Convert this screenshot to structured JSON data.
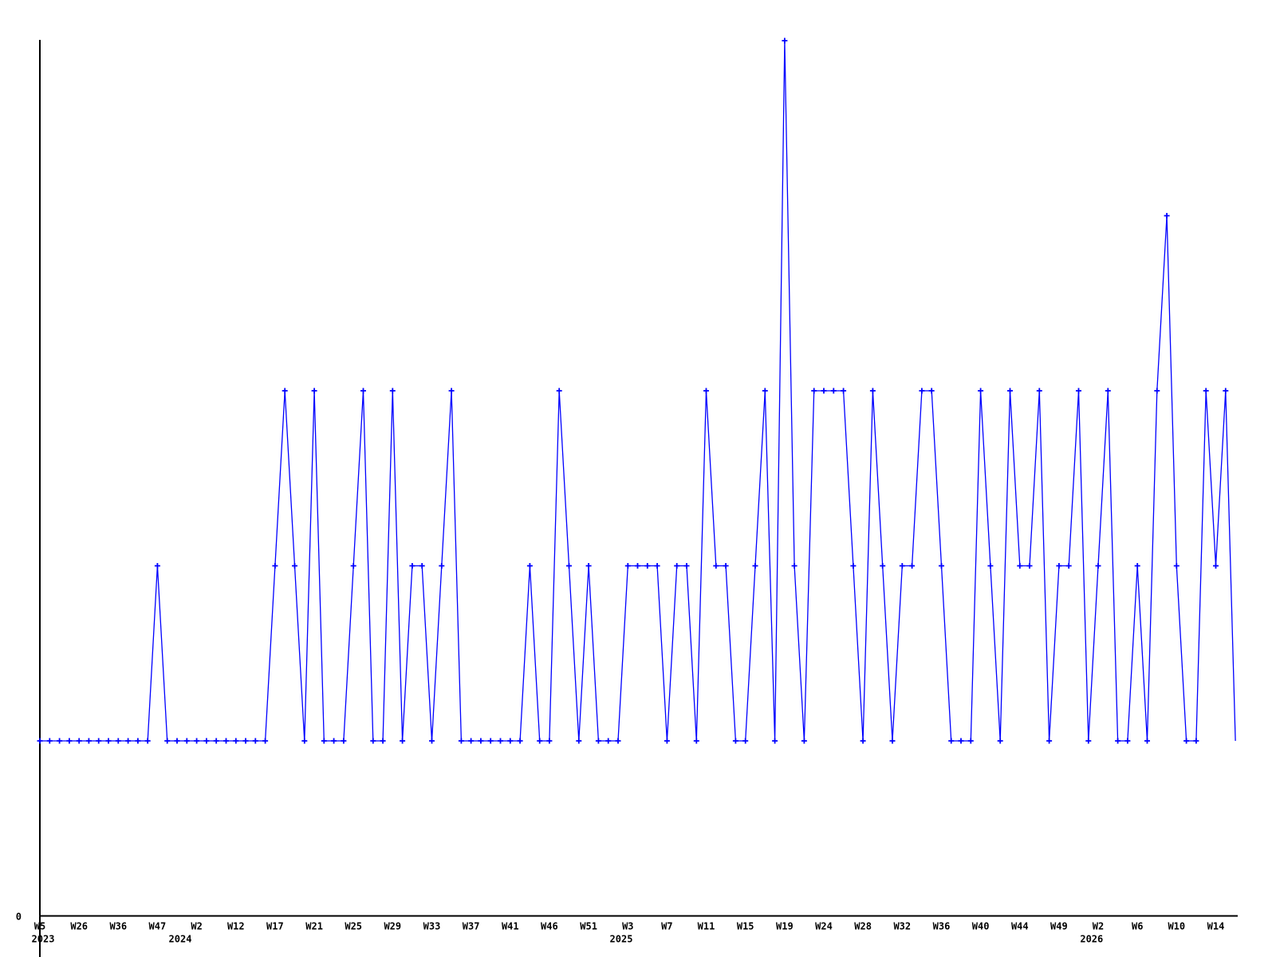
{
  "chart_data": {
    "type": "line",
    "title": "",
    "legend": "none",
    "grid": "off",
    "line_color": "#0000ff",
    "axis_color": "#000000",
    "background_color": "#ffffff",
    "marker": "plus",
    "ylim": [
      0,
      5
    ],
    "y_tick_labels": [
      {
        "value": 0,
        "label": "0"
      }
    ],
    "x_axis_note": "weekly series, one point per week with data; tick every 4th point",
    "x_tick_labels": [
      {
        "index": 0,
        "label": "W5"
      },
      {
        "index": 4,
        "label": "W26"
      },
      {
        "index": 8,
        "label": "W36"
      },
      {
        "index": 12,
        "label": "W47"
      },
      {
        "index": 16,
        "label": "W2"
      },
      {
        "index": 20,
        "label": "W12"
      },
      {
        "index": 24,
        "label": "W17"
      },
      {
        "index": 28,
        "label": "W21"
      },
      {
        "index": 32,
        "label": "W25"
      },
      {
        "index": 36,
        "label": "W29"
      },
      {
        "index": 40,
        "label": "W33"
      },
      {
        "index": 44,
        "label": "W37"
      },
      {
        "index": 48,
        "label": "W41"
      },
      {
        "index": 52,
        "label": "W46"
      },
      {
        "index": 56,
        "label": "W51"
      },
      {
        "index": 60,
        "label": "W3"
      },
      {
        "index": 64,
        "label": "W7"
      },
      {
        "index": 68,
        "label": "W11"
      },
      {
        "index": 72,
        "label": "W15"
      },
      {
        "index": 76,
        "label": "W19"
      },
      {
        "index": 80,
        "label": "W24"
      },
      {
        "index": 84,
        "label": "W28"
      },
      {
        "index": 88,
        "label": "W32"
      },
      {
        "index": 92,
        "label": "W36"
      },
      {
        "index": 96,
        "label": "W40"
      },
      {
        "index": 100,
        "label": "W44"
      },
      {
        "index": 104,
        "label": "W49"
      },
      {
        "index": 108,
        "label": "W2"
      },
      {
        "index": 112,
        "label": "W6"
      },
      {
        "index": 116,
        "label": "W10"
      },
      {
        "index": 120,
        "label": "W14"
      }
    ],
    "year_labels": [
      {
        "index": 0,
        "label": "2023"
      },
      {
        "index": 14,
        "label": "2024"
      },
      {
        "index": 59,
        "label": "2025"
      },
      {
        "index": 107,
        "label": "2026"
      }
    ],
    "values": [
      1,
      1,
      1,
      1,
      1,
      1,
      1,
      1,
      1,
      1,
      1,
      1,
      2,
      1,
      1,
      1,
      1,
      1,
      1,
      1,
      1,
      1,
      1,
      1,
      2,
      3,
      2,
      1,
      3,
      1,
      1,
      1,
      2,
      3,
      1,
      1,
      3,
      1,
      2,
      2,
      1,
      2,
      3,
      1,
      1,
      1,
      1,
      1,
      1,
      1,
      2,
      1,
      1,
      3,
      2,
      1,
      2,
      1,
      1,
      1,
      2,
      2,
      2,
      2,
      1,
      2,
      2,
      1,
      3,
      2,
      2,
      1,
      1,
      2,
      3,
      1,
      5,
      2,
      1,
      3,
      3,
      3,
      3,
      2,
      1,
      3,
      2,
      1,
      2,
      2,
      3,
      3,
      2,
      1,
      1,
      1,
      3,
      2,
      1,
      3,
      2,
      2,
      3,
      1,
      2,
      2,
      3,
      1,
      2,
      3,
      1,
      1,
      2,
      1,
      3,
      4,
      2,
      1,
      1,
      3,
      2,
      3,
      1
    ],
    "last_point_has_marker": false
  }
}
